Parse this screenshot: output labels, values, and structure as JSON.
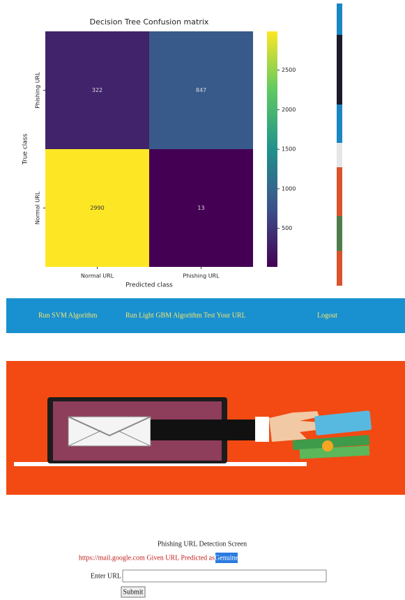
{
  "chart_data": {
    "type": "heatmap",
    "title": "Decision Tree Confusion matrix",
    "xlabel": "Predicted class",
    "ylabel": "True class",
    "x_categories": [
      "Normal URL",
      "Phishing URL"
    ],
    "y_categories": [
      "Phishing URL",
      "Normal URL"
    ],
    "values": [
      [
        322,
        847
      ],
      [
        2990,
        13
      ]
    ],
    "colormap": "viridis",
    "clim": [
      13,
      2990
    ],
    "cbar_ticks": [
      500,
      1000,
      1500,
      2000,
      2500
    ]
  },
  "nav": {
    "links": [
      "Run SVM Algorithm",
      "Run Light GBM Algorithm",
      "Test Your URL",
      "Logout"
    ]
  },
  "form": {
    "title": "Phishing URL Detection Screen",
    "result_text": "https://mail.google.com Given URL Predicted as",
    "result_label": "Genuine",
    "input_label": "Enter URL",
    "submit": "Submit"
  }
}
